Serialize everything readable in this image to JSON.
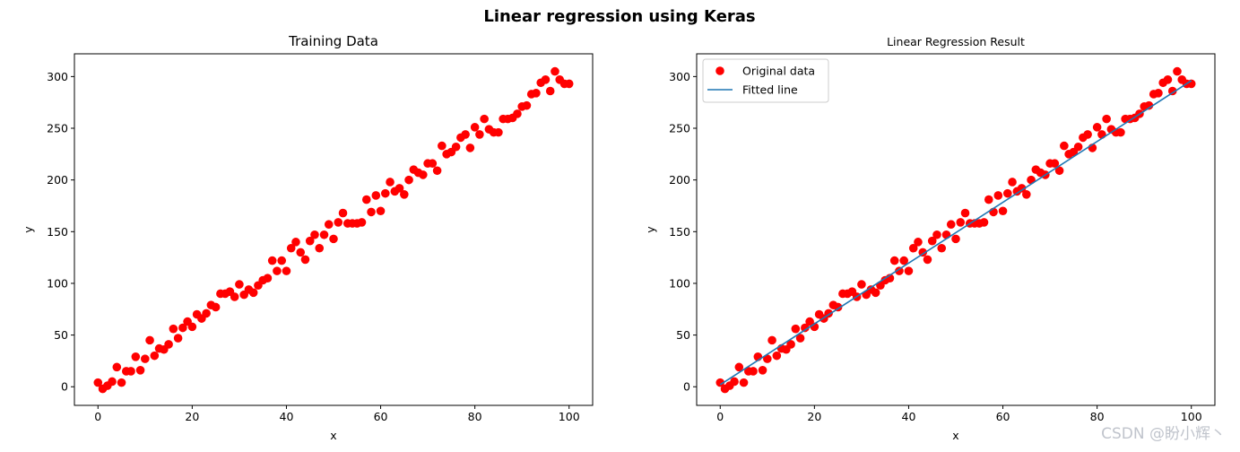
{
  "figure": {
    "suptitle": "Linear regression using Keras",
    "watermark": "CSDN @盼小辉丶"
  },
  "colors": {
    "points": "#ff0000",
    "line": "#1f77b4",
    "axes": "#000000"
  },
  "chart_data": [
    {
      "type": "scatter",
      "title": "Training Data",
      "xlabel": "x",
      "ylabel": "y",
      "xlim": [
        -5,
        105
      ],
      "ylim": [
        -18,
        322
      ],
      "xticks": [
        0,
        20,
        40,
        60,
        80,
        100
      ],
      "yticks": [
        0,
        50,
        100,
        150,
        200,
        250,
        300
      ],
      "grid": false,
      "series": [
        {
          "marker": "circle",
          "color": "#ff0000",
          "x": [
            0,
            1,
            2,
            3,
            4,
            5,
            6,
            7,
            8,
            9,
            10,
            11,
            12,
            13,
            14,
            15,
            16,
            17,
            18,
            19,
            20,
            21,
            22,
            23,
            24,
            25,
            26,
            27,
            28,
            29,
            30,
            31,
            32,
            33,
            34,
            35,
            36,
            37,
            38,
            39,
            40,
            41,
            42,
            43,
            44,
            45,
            46,
            47,
            48,
            49,
            50,
            51,
            52,
            53,
            54,
            55,
            56,
            57,
            58,
            59,
            60,
            61,
            62,
            63,
            64,
            65,
            66,
            67,
            68,
            69,
            70,
            71,
            72,
            73,
            74,
            75,
            76,
            77,
            78,
            79,
            80,
            81,
            82,
            83,
            84,
            85,
            86,
            87,
            88,
            89,
            90,
            91,
            92,
            93,
            94,
            95,
            96,
            97,
            98,
            99,
            100
          ],
          "y": [
            4,
            -2,
            1,
            5,
            19,
            4,
            15,
            15,
            29,
            16,
            27,
            45,
            30,
            37,
            36,
            41,
            56,
            47,
            57,
            63,
            58,
            70,
            66,
            71,
            79,
            77,
            90,
            90,
            92,
            87,
            99,
            89,
            94,
            91,
            98,
            103,
            105,
            122,
            112,
            122,
            112,
            134,
            140,
            130,
            123,
            141,
            147,
            134,
            147,
            157,
            143,
            159,
            168,
            158,
            158,
            158,
            159,
            181,
            169,
            185,
            170,
            187,
            198,
            189,
            192,
            186,
            200,
            210,
            207,
            205,
            216,
            216,
            209,
            233,
            225,
            227,
            232,
            241,
            244,
            231,
            251,
            244,
            259,
            249,
            246,
            246,
            259,
            259,
            260,
            264,
            271,
            272,
            283,
            284,
            294,
            297,
            286,
            305,
            297,
            293,
            293
          ]
        }
      ]
    },
    {
      "type": "scatter",
      "title": "Linear Regression Result",
      "xlabel": "x",
      "ylabel": "y",
      "xlim": [
        -5,
        105
      ],
      "ylim": [
        -18,
        322
      ],
      "xticks": [
        0,
        20,
        40,
        60,
        80,
        100
      ],
      "yticks": [
        0,
        50,
        100,
        150,
        200,
        250,
        300
      ],
      "grid": false,
      "legend": {
        "position": "top-left",
        "entries": [
          "Original data",
          "Fitted line"
        ]
      },
      "series": [
        {
          "name": "Original data",
          "marker": "circle",
          "color": "#ff0000",
          "x": [
            0,
            1,
            2,
            3,
            4,
            5,
            6,
            7,
            8,
            9,
            10,
            11,
            12,
            13,
            14,
            15,
            16,
            17,
            18,
            19,
            20,
            21,
            22,
            23,
            24,
            25,
            26,
            27,
            28,
            29,
            30,
            31,
            32,
            33,
            34,
            35,
            36,
            37,
            38,
            39,
            40,
            41,
            42,
            43,
            44,
            45,
            46,
            47,
            48,
            49,
            50,
            51,
            52,
            53,
            54,
            55,
            56,
            57,
            58,
            59,
            60,
            61,
            62,
            63,
            64,
            65,
            66,
            67,
            68,
            69,
            70,
            71,
            72,
            73,
            74,
            75,
            76,
            77,
            78,
            79,
            80,
            81,
            82,
            83,
            84,
            85,
            86,
            87,
            88,
            89,
            90,
            91,
            92,
            93,
            94,
            95,
            96,
            97,
            98,
            99,
            100
          ],
          "y": [
            4,
            -2,
            1,
            5,
            19,
            4,
            15,
            15,
            29,
            16,
            27,
            45,
            30,
            37,
            36,
            41,
            56,
            47,
            57,
            63,
            58,
            70,
            66,
            71,
            79,
            77,
            90,
            90,
            92,
            87,
            99,
            89,
            94,
            91,
            98,
            103,
            105,
            122,
            112,
            122,
            112,
            134,
            140,
            130,
            123,
            141,
            147,
            134,
            147,
            157,
            143,
            159,
            168,
            158,
            158,
            158,
            159,
            181,
            169,
            185,
            170,
            187,
            198,
            189,
            192,
            186,
            200,
            210,
            207,
            205,
            216,
            216,
            209,
            233,
            225,
            227,
            232,
            241,
            244,
            231,
            251,
            244,
            259,
            249,
            246,
            246,
            259,
            259,
            260,
            264,
            271,
            272,
            283,
            284,
            294,
            297,
            286,
            305,
            297,
            293,
            293
          ]
        },
        {
          "name": "Fitted line",
          "type": "line",
          "color": "#1f77b4",
          "x": [
            0,
            100
          ],
          "y": [
            2,
            296
          ]
        }
      ]
    }
  ]
}
